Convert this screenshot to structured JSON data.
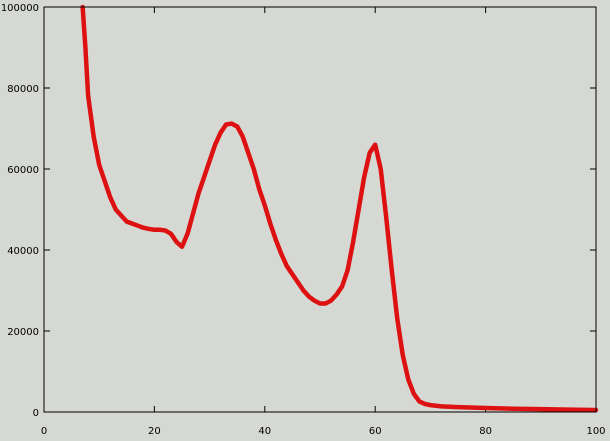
{
  "colors": {
    "background": "#d6d9d3",
    "axis": "#000000",
    "series": "#dd1111"
  },
  "chart_data": {
    "type": "line",
    "title": "",
    "xlabel": "",
    "ylabel": "",
    "xlim": [
      0,
      100
    ],
    "ylim": [
      0,
      100000
    ],
    "grid": false,
    "legend": "none",
    "x_ticks": [
      0,
      20,
      40,
      60,
      80,
      100
    ],
    "y_ticks": [
      0,
      20000,
      40000,
      60000,
      80000,
      100000
    ],
    "x_tick_labels": [
      "0",
      "20",
      "40",
      "60",
      "80",
      "100"
    ],
    "y_tick_labels": [
      "0",
      "20000",
      "40000",
      "60000",
      "80000",
      "100000"
    ],
    "series": [
      {
        "x": [
          7,
          7.5,
          8,
          9,
          10,
          11,
          12,
          13,
          14,
          15,
          16,
          17,
          18,
          19,
          20,
          21,
          22,
          23,
          24,
          25,
          26,
          27,
          28,
          29,
          30,
          31,
          32,
          33,
          34,
          35,
          36,
          37,
          38,
          39,
          40,
          41,
          42,
          43,
          44,
          45,
          46,
          47,
          48,
          49,
          50,
          51,
          52,
          53,
          54,
          55,
          56,
          57,
          58,
          59,
          60,
          61,
          62,
          63,
          64,
          65,
          66,
          67,
          68,
          69,
          70,
          72,
          75,
          80,
          85,
          90,
          95,
          100
        ],
        "y": [
          100000,
          90000,
          78000,
          68000,
          61000,
          57000,
          53000,
          50000,
          48500,
          47000,
          46500,
          46000,
          45500,
          45200,
          45000,
          45000,
          44800,
          44000,
          42000,
          40800,
          44000,
          49000,
          54000,
          58000,
          62000,
          66000,
          69000,
          71000,
          71200,
          70500,
          68000,
          64000,
          60000,
          55000,
          51000,
          46500,
          42500,
          39000,
          36000,
          34000,
          32000,
          30000,
          28500,
          27500,
          26800,
          26800,
          27500,
          29000,
          31000,
          35000,
          42000,
          50000,
          58000,
          64000,
          66000,
          60000,
          48000,
          35000,
          23000,
          14000,
          8000,
          4500,
          2600,
          2000,
          1700,
          1400,
          1200,
          1000,
          800,
          700,
          600,
          500
        ]
      }
    ]
  }
}
